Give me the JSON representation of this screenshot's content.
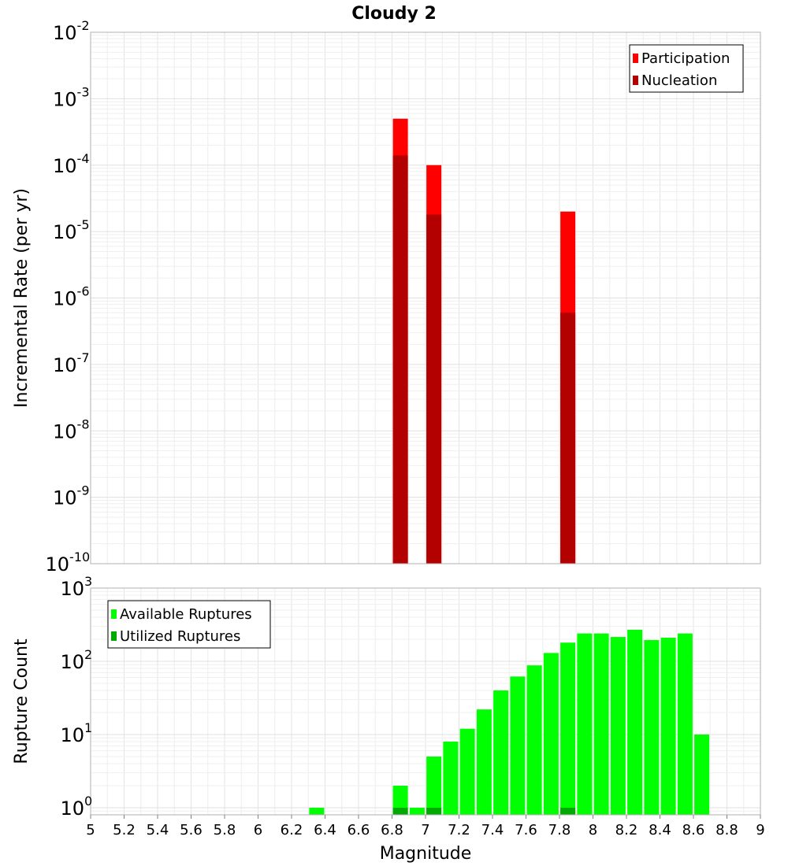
{
  "chart_data": {
    "type": "bar",
    "title": "Cloudy 2",
    "x_axis": {
      "label": "Magnitude",
      "range": [
        5,
        9
      ],
      "ticks": [
        "5",
        "5.2",
        "5.4",
        "5.6",
        "5.8",
        "6",
        "6.2",
        "6.4",
        "6.6",
        "6.8",
        "7",
        "7.2",
        "7.4",
        "7.6",
        "7.8",
        "8",
        "8.2",
        "8.4",
        "8.6",
        "8.8",
        "9"
      ]
    },
    "panels": [
      {
        "ylabel": "Incremental Rate (per yr)",
        "yscale": "log",
        "ylim": [
          1e-10,
          0.01
        ],
        "ytick_base": "10",
        "ytick_exponents": [
          "-10",
          "-9",
          "-8",
          "-7",
          "-6",
          "-5",
          "-4",
          "-3",
          "-2"
        ],
        "grid": true,
        "legend_position": "top-right",
        "colors": {
          "Participation": "#ff0000",
          "Nucleation": "#b30000"
        },
        "series": [
          {
            "name": "Participation",
            "x": [
              6.85,
              7.05,
              7.85
            ],
            "values": [
              0.0005,
              0.0001,
              2e-05
            ]
          },
          {
            "name": "Nucleation",
            "x": [
              6.85,
              7.05,
              7.85
            ],
            "values": [
              0.00014,
              1.8e-05,
              6e-07
            ]
          }
        ]
      },
      {
        "ylabel": "Rupture Count",
        "yscale": "log",
        "ylim": [
          0.8,
          1000
        ],
        "ytick_base": "10",
        "ytick_exponents": [
          "0",
          "1",
          "2",
          "3"
        ],
        "grid": true,
        "legend_position": "top-left",
        "colors": {
          "Available Ruptures": "#00ff00",
          "Utilized Ruptures": "#00aa00"
        },
        "series": [
          {
            "name": "Available Ruptures",
            "x": [
              6.35,
              6.85,
              6.95,
              7.05,
              7.15,
              7.25,
              7.35,
              7.45,
              7.55,
              7.65,
              7.75,
              7.85,
              7.95,
              8.05,
              8.15,
              8.25,
              8.35,
              8.45,
              8.55,
              8.65
            ],
            "values": [
              1,
              2,
              1,
              5,
              8,
              12,
              22,
              40,
              62,
              88,
              130,
              180,
              240,
              240,
              215,
              270,
              195,
              210,
              240,
              10
            ]
          },
          {
            "name": "Utilized Ruptures",
            "x": [
              6.85,
              7.05,
              7.85
            ],
            "values": [
              1,
              1,
              1
            ]
          }
        ]
      }
    ]
  }
}
